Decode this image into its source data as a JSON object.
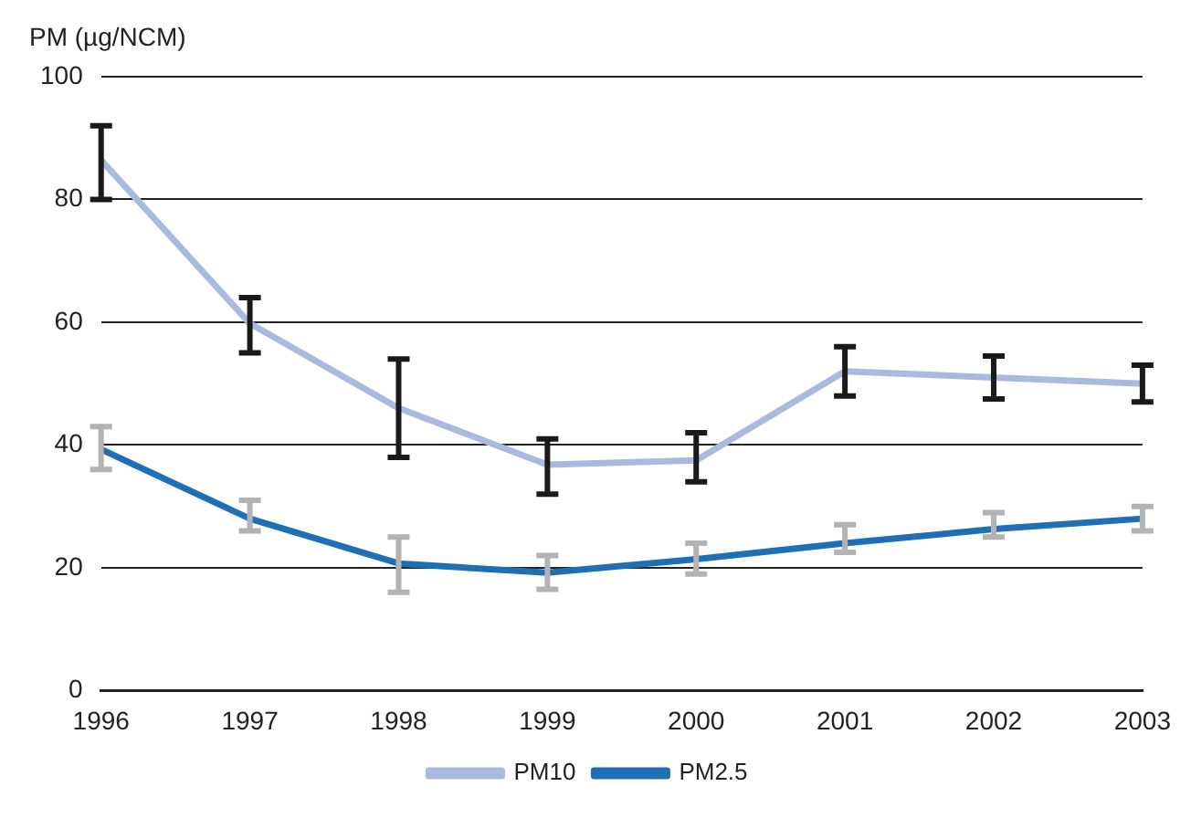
{
  "chart_data": {
    "type": "line",
    "ylabel": "PM (µg/NCM)",
    "categories": [
      "1996",
      "1997",
      "1998",
      "1999",
      "2000",
      "2001",
      "2002",
      "2003"
    ],
    "series": [
      {
        "name": "PM10",
        "color": "#a9b9e0",
        "values": [
          86.4,
          59.8,
          46,
          36.8,
          37.5,
          52,
          51,
          50
        ],
        "errors": [
          [
            80,
            92
          ],
          [
            55,
            64
          ],
          [
            38,
            54
          ],
          [
            32,
            41
          ],
          [
            34,
            42
          ],
          [
            48,
            56
          ],
          [
            47.5,
            54.5
          ],
          [
            47,
            53
          ]
        ]
      },
      {
        "name": "PM2.5",
        "color": "#1f6fb5",
        "values": [
          39.3,
          28,
          20.7,
          19.2,
          21.4,
          24,
          26.3,
          28
        ],
        "errors": [
          [
            36,
            43
          ],
          [
            26,
            31
          ],
          [
            16,
            25
          ],
          [
            16.5,
            22
          ],
          [
            19,
            24
          ],
          [
            22.5,
            27
          ],
          [
            25,
            29
          ],
          [
            26,
            30
          ]
        ]
      }
    ],
    "ylim": [
      0,
      100
    ],
    "yticks": [
      0,
      20,
      40,
      60,
      80,
      100
    ],
    "grid": "y",
    "legend": "bottom",
    "marker": "none",
    "line_style": "solid"
  }
}
